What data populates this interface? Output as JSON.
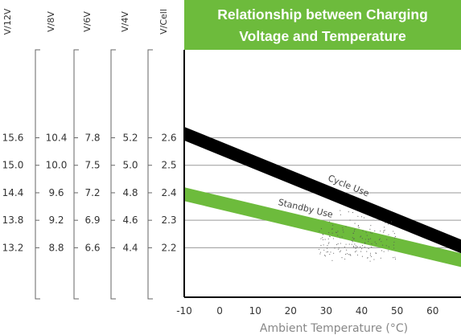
{
  "chart_data": {
    "type": "area",
    "title_lines": [
      "Relationship between Charging",
      "Voltage and Temperature"
    ],
    "xlabel": "Ambient Temperature (°C)",
    "ylabel": "V/Cell",
    "xlim": [
      -10,
      68
    ],
    "ylim": [
      2.02,
      2.92
    ],
    "x_ticks": [
      "-10",
      "0",
      "10",
      "20",
      "30",
      "40",
      "50",
      "60"
    ],
    "x_tick_values": [
      -10,
      0,
      10,
      20,
      30,
      40,
      50,
      60
    ],
    "y_ticks": [
      2.2,
      2.3,
      2.4,
      2.5,
      2.6
    ],
    "grid": true,
    "colors": {
      "cycle": "#000000",
      "standby": "#6dbb3c",
      "title_bg": "#6dbb3c"
    },
    "voltage_columns": [
      {
        "header": "V/12V",
        "labels": [
          "15.6",
          "15.0",
          "14.4",
          "13.8",
          "13.2"
        ]
      },
      {
        "header": "V/8V",
        "labels": [
          "10.4",
          "10.0",
          "9.6",
          "9.2",
          "8.8"
        ]
      },
      {
        "header": "V/6V",
        "labels": [
          "7.8",
          "7.5",
          "7.2",
          "6.9",
          "6.6"
        ]
      },
      {
        "header": "V/4V",
        "labels": [
          "5.2",
          "5.0",
          "4.8",
          "4.6",
          "4.4"
        ]
      },
      {
        "header": "V/Cell",
        "labels": [
          "2.6",
          "2.5",
          "2.4",
          "2.3",
          "2.2"
        ]
      }
    ],
    "series": [
      {
        "name": "Cycle Use",
        "x": [
          -10,
          68
        ],
        "upper": [
          2.64,
          2.23
        ],
        "lower": [
          2.59,
          2.18
        ]
      },
      {
        "name": "Standby Use",
        "x": [
          -10,
          68
        ],
        "upper": [
          2.42,
          2.18
        ],
        "lower": [
          2.37,
          2.13
        ]
      }
    ]
  }
}
